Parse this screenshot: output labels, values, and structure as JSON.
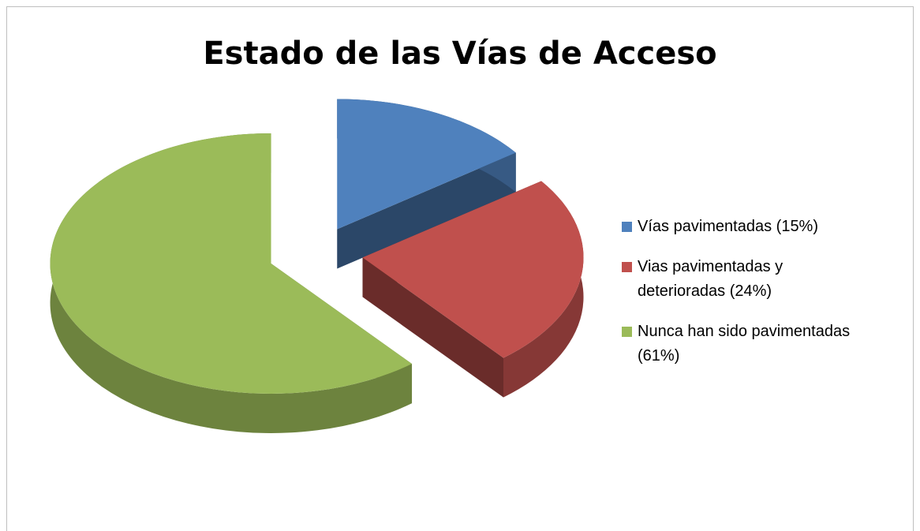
{
  "chart_data": {
    "type": "pie",
    "title": "Estado de las Vías de Acceso",
    "categories": [
      "Vías pavimentadas (15%)",
      "Vias pavimentadas y deterioradas (24%)",
      "Nunca han sido pavimentadas (61%)"
    ],
    "values": [
      15,
      24,
      61
    ],
    "colors": [
      "#4f81bd",
      "#c0504d",
      "#9bbb59"
    ],
    "legend": "right"
  }
}
